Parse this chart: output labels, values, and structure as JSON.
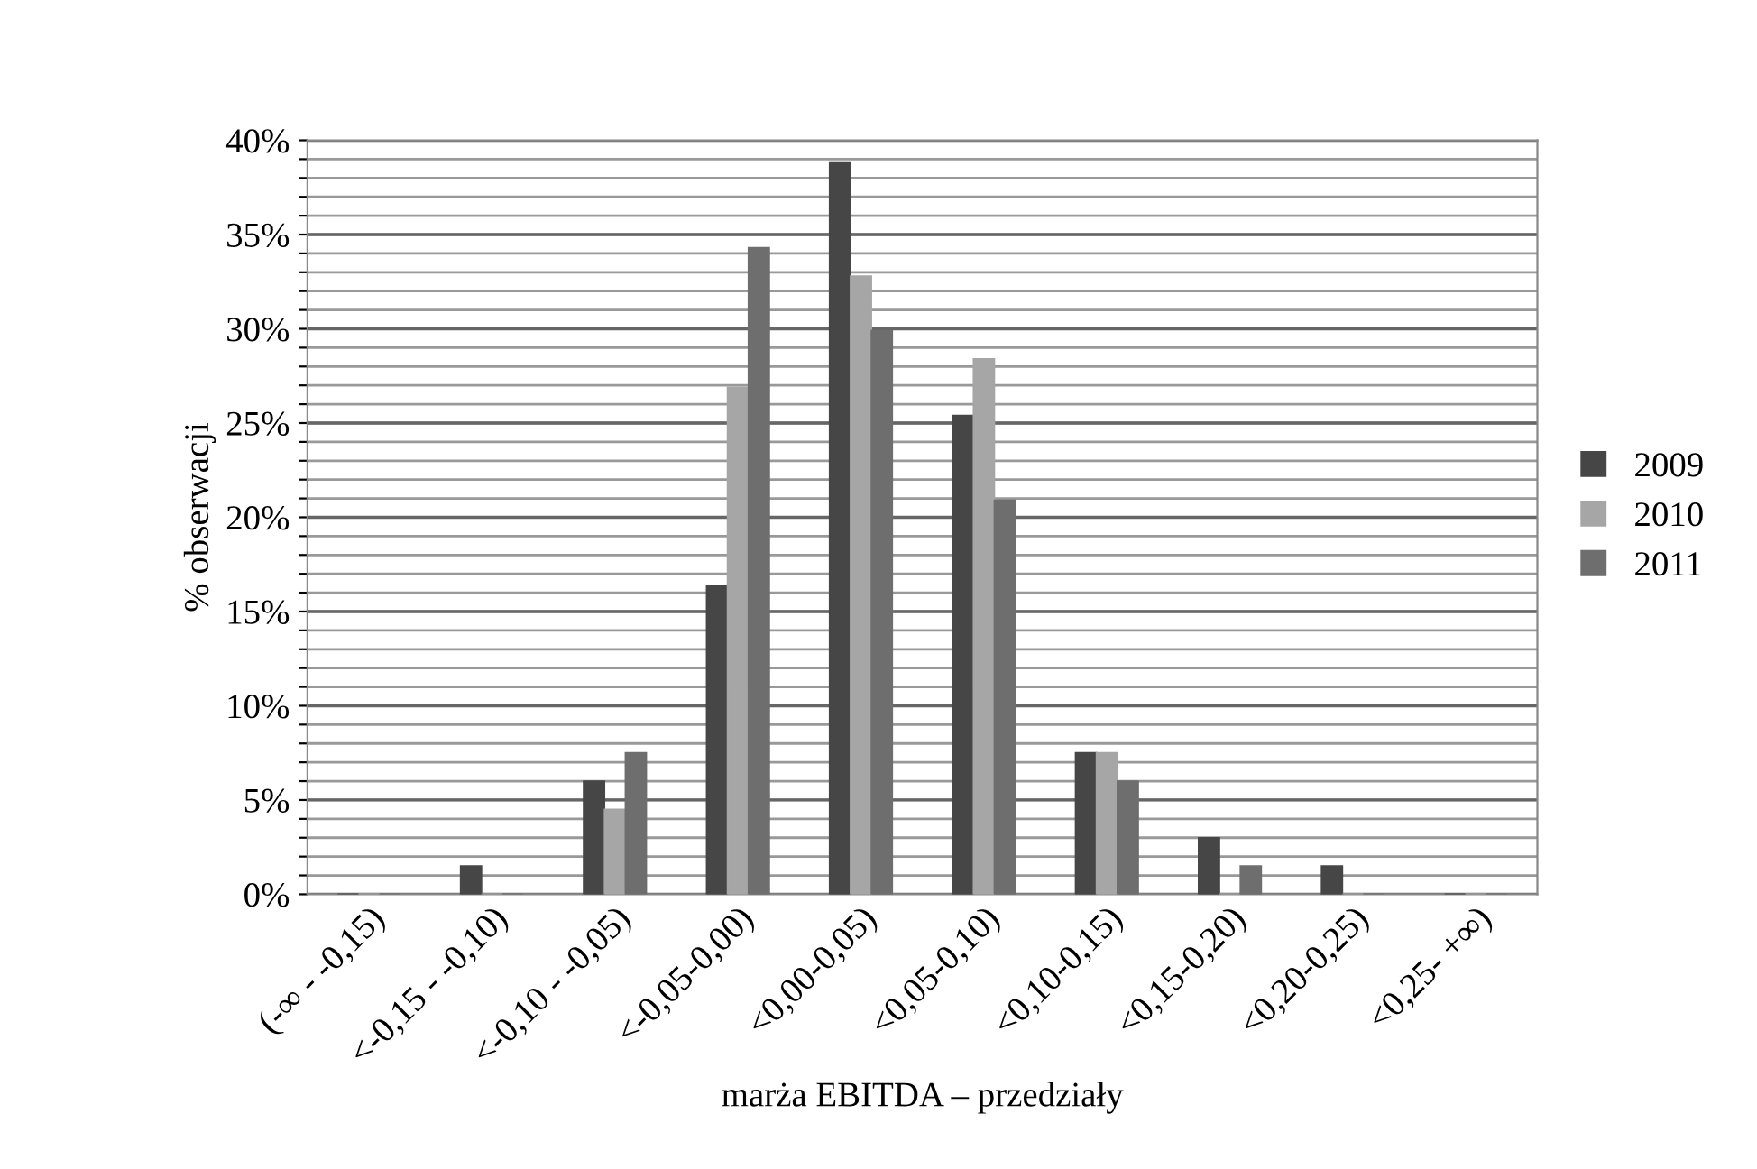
{
  "chart_data": {
    "type": "bar",
    "xlabel": "marża EBITDA – przedziały",
    "ylabel": "% obserwacji",
    "categories": [
      "(-∞ - -0,15)",
      "<-0,15 - -0,10)",
      "<-0,10 - -0,05)",
      "<-0,05-0,00)",
      "<0,00-0,05)",
      "<0,05-0,10)",
      "<0,10-0,15)",
      "<0,15-0,20)",
      "<0,20-0,25)",
      "<0,25- +∞)"
    ],
    "series": [
      {
        "name": "2009",
        "color": "#464646",
        "values": [
          0,
          1.5,
          6,
          16.4,
          38.8,
          25.4,
          7.5,
          3.0,
          1.5,
          0
        ]
      },
      {
        "name": "2010",
        "color": "#a6a6a6",
        "values": [
          0,
          0,
          4.5,
          26.9,
          32.8,
          28.4,
          7.5,
          0,
          0,
          0
        ]
      },
      {
        "name": "2011",
        "color": "#6e6e6e",
        "values": [
          0,
          0,
          7.5,
          34.3,
          29.9,
          20.9,
          6.0,
          1.5,
          0,
          0
        ]
      }
    ],
    "ylim": [
      0,
      40
    ],
    "yticks": [
      {
        "value": 0,
        "label": "0%"
      },
      {
        "value": 1,
        "label": null
      },
      {
        "value": 2,
        "label": null
      },
      {
        "value": 3,
        "label": null
      },
      {
        "value": 4,
        "label": null
      },
      {
        "value": 5,
        "label": "5%"
      },
      {
        "value": 6,
        "label": null
      },
      {
        "value": 7,
        "label": null
      },
      {
        "value": 8,
        "label": null
      },
      {
        "value": 9,
        "label": null
      },
      {
        "value": 10,
        "label": "10%"
      },
      {
        "value": 11,
        "label": null
      },
      {
        "value": 12,
        "label": null
      },
      {
        "value": 13,
        "label": null
      },
      {
        "value": 14,
        "label": null
      },
      {
        "value": 15,
        "label": "15%"
      },
      {
        "value": 16,
        "label": null
      },
      {
        "value": 17,
        "label": null
      },
      {
        "value": 18,
        "label": null
      },
      {
        "value": 19,
        "label": null
      },
      {
        "value": 20,
        "label": "20%"
      },
      {
        "value": 21,
        "label": null
      },
      {
        "value": 22,
        "label": null
      },
      {
        "value": 23,
        "label": null
      },
      {
        "value": 24,
        "label": null
      },
      {
        "value": 25,
        "label": "25%"
      },
      {
        "value": 26,
        "label": null
      },
      {
        "value": 27,
        "label": null
      },
      {
        "value": 28,
        "label": null
      },
      {
        "value": 29,
        "label": null
      },
      {
        "value": 30,
        "label": "30%"
      },
      {
        "value": 31,
        "label": null
      },
      {
        "value": 32,
        "label": null
      },
      {
        "value": 33,
        "label": null
      },
      {
        "value": 34,
        "label": null
      },
      {
        "value": 35,
        "label": "35%"
      },
      {
        "value": 36,
        "label": null
      },
      {
        "value": 37,
        "label": null
      },
      {
        "value": 38,
        "label": null
      },
      {
        "value": 39,
        "label": null
      },
      {
        "value": 40,
        "label": "40%"
      }
    ],
    "grid": "y",
    "legend": "right"
  }
}
